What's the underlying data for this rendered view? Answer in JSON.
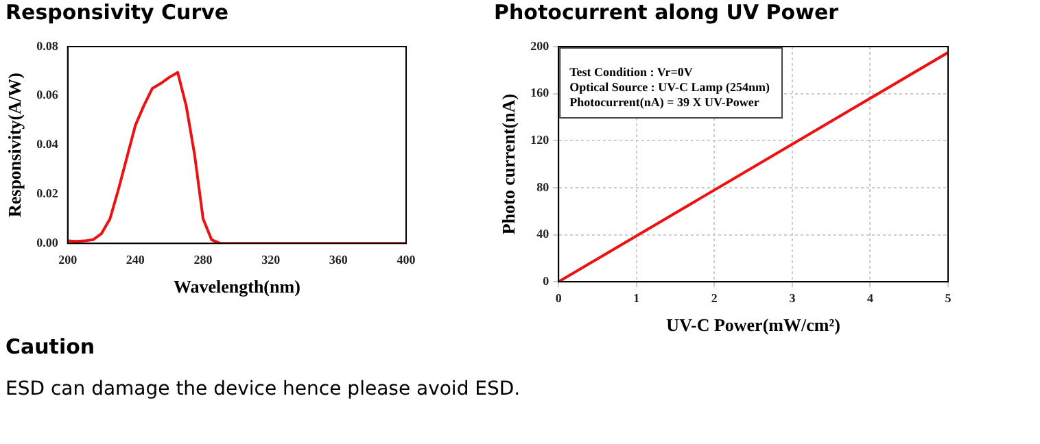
{
  "chart_data": [
    {
      "type": "line",
      "title": "Responsivity Curve",
      "xlabel": "Wavelength(nm)",
      "ylabel": "Responsivity(A/W)",
      "x": [
        200,
        205,
        210,
        215,
        220,
        225,
        230,
        235,
        240,
        245,
        250,
        255,
        260,
        265,
        270,
        275,
        280,
        285,
        290,
        300,
        400
      ],
      "series": [
        {
          "color": "#ee1111",
          "values": [
            0.001,
            0.0008,
            0.001,
            0.0015,
            0.004,
            0.01,
            0.022,
            0.035,
            0.048,
            0.056,
            0.063,
            0.065,
            0.0675,
            0.0695,
            0.056,
            0.036,
            0.01,
            0.0015,
            0,
            0,
            0
          ]
        }
      ],
      "xlim": [
        200,
        400
      ],
      "xticks": [
        200,
        240,
        280,
        320,
        360,
        400
      ],
      "ylim": [
        0,
        0.08
      ],
      "yticks": [
        {
          "value": 0,
          "label": "0.00"
        },
        {
          "value": 0.02,
          "label": "0.02"
        },
        {
          "value": 0.04,
          "label": "0.04"
        },
        {
          "value": 0.06,
          "label": "0.06"
        },
        {
          "value": 0.08,
          "label": "0.08"
        }
      ],
      "grid": false,
      "legend": false,
      "marker": "none",
      "line_style": "solid"
    },
    {
      "type": "line",
      "title": "Photocurrent along UV Power",
      "xlabel": "UV-C Power(mW/cm²)",
      "ylabel": "Photo current(nA)",
      "x": [
        0,
        5
      ],
      "series": [
        {
          "color": "#ee1111",
          "values": [
            0,
            195
          ]
        }
      ],
      "xlim": [
        0,
        5
      ],
      "xticks": [
        0,
        1,
        2,
        3,
        4,
        5
      ],
      "ylim": [
        0,
        200
      ],
      "yticks": [
        0,
        40,
        80,
        120,
        160,
        200
      ],
      "annotations": [
        "Test Condition : Vr=0V",
        "Optical Source : UV-C Lamp (254nm)",
        "Photocurrent(nA) = 39 X UV-Power"
      ],
      "grid": true,
      "legend": false,
      "marker": "none",
      "line_style": "solid"
    },
    {
      "type": "other",
      "title": "Caution",
      "annotations": [
        "ESD can damage the device hence please avoid ESD."
      ]
    }
  ]
}
